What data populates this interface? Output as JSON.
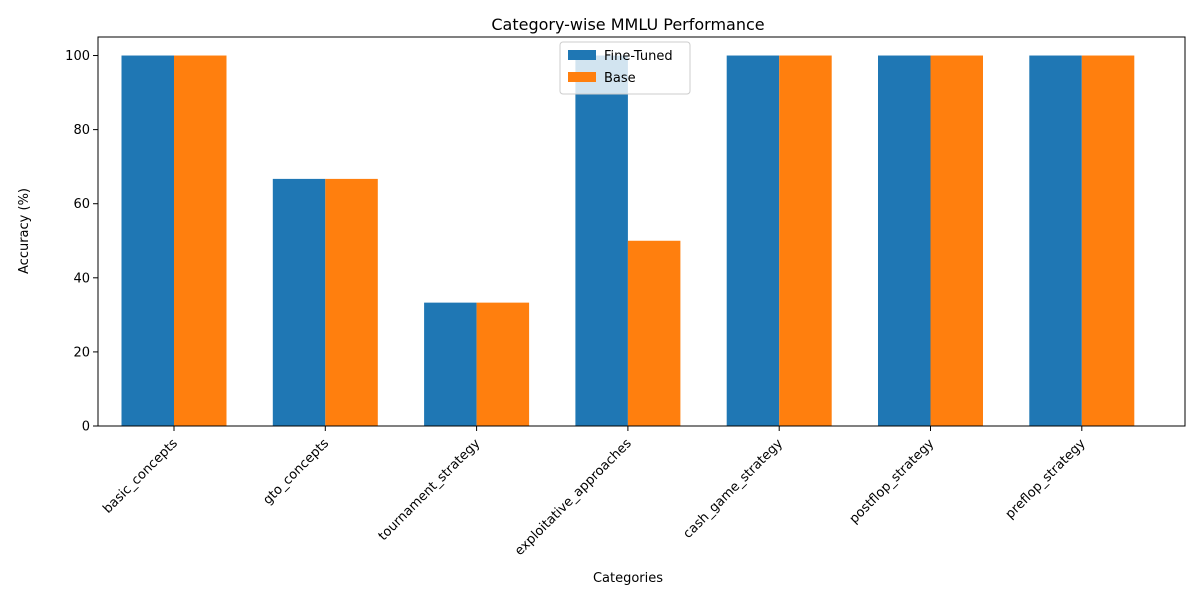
{
  "chart_data": {
    "type": "bar",
    "title": "Category-wise MMLU Performance",
    "xlabel": "Categories",
    "ylabel": "Accuracy (%)",
    "categories": [
      "basic_concepts",
      "gto_concepts",
      "tournament_strategy",
      "exploitative_approaches",
      "cash_game_strategy",
      "postflop_strategy",
      "preflop_strategy"
    ],
    "series": [
      {
        "name": "Fine-Tuned",
        "color": "#1f77b4",
        "values": [
          100,
          66.7,
          33.3,
          100,
          100,
          100,
          100
        ]
      },
      {
        "name": "Base",
        "color": "#ff7f0e",
        "values": [
          100,
          66.7,
          33.3,
          50,
          100,
          100,
          100
        ]
      }
    ],
    "ylim": [
      0,
      105
    ],
    "yticks": [
      0,
      20,
      40,
      60,
      80,
      100
    ],
    "grid": false,
    "legend_position": "top-center"
  }
}
